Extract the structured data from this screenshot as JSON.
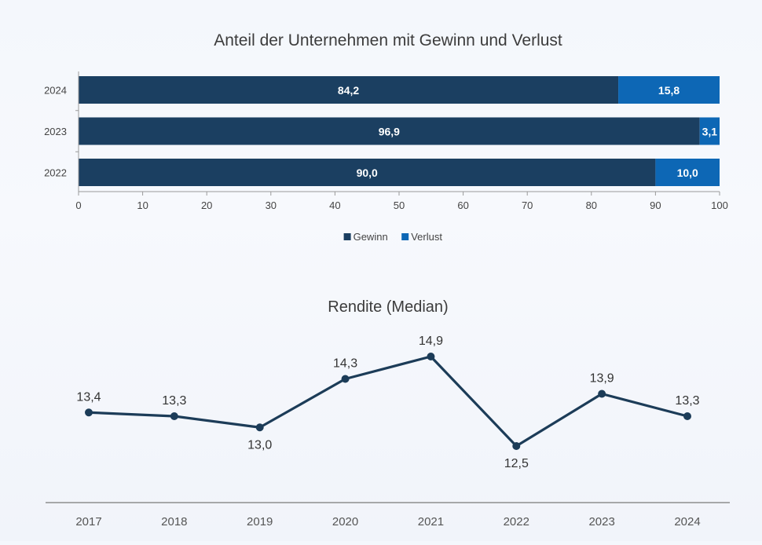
{
  "chart_data": [
    {
      "type": "bar",
      "orientation": "horizontal",
      "stacked": true,
      "title": "Anteil der Unternehmen mit Gewinn und Verlust",
      "categories": [
        "2024",
        "2023",
        "2022"
      ],
      "series": [
        {
          "name": "Gewinn",
          "values": [
            84.2,
            96.9,
            90.0
          ],
          "labels": [
            "84,2",
            "96,9",
            "90,0"
          ],
          "color": "#1b3f61"
        },
        {
          "name": "Verlust",
          "values": [
            15.8,
            3.1,
            10.0
          ],
          "labels": [
            "15,8",
            "3,1",
            "10,0"
          ],
          "color": "#0d67b5"
        }
      ],
      "xlim": [
        0,
        100
      ],
      "xticks": [
        "0",
        "10",
        "20",
        "30",
        "40",
        "50",
        "60",
        "70",
        "80",
        "90",
        "100"
      ],
      "legend_position": "bottom",
      "grid": false
    },
    {
      "type": "line",
      "title": "Rendite (Median)",
      "x": [
        "2017",
        "2018",
        "2019",
        "2020",
        "2021",
        "2022",
        "2023",
        "2024"
      ],
      "series": [
        {
          "values": [
            13.4,
            13.3,
            13.0,
            14.3,
            14.9,
            12.5,
            13.9,
            13.3
          ],
          "labels": [
            "13,4",
            "13,3",
            "13,0",
            "14,3",
            "14,9",
            "12,5",
            "13,9",
            "13,3"
          ],
          "label_positions": [
            "above",
            "above",
            "below",
            "above",
            "above",
            "below",
            "above",
            "above"
          ],
          "color": "#1c3c58"
        }
      ],
      "ylim": [
        12.0,
        15.5
      ],
      "grid": false,
      "yaxis_visible": false
    }
  ]
}
